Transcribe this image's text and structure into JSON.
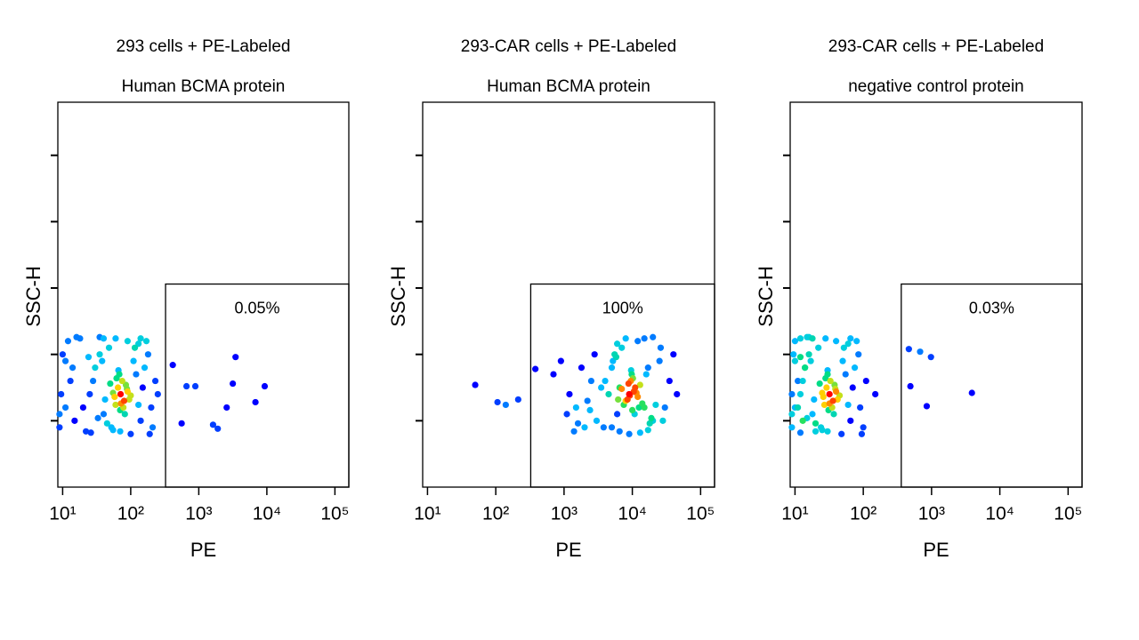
{
  "chart_data": [
    {
      "type": "scatter",
      "title": "293 cells + PE-Labeled",
      "subtitle": "Human BCMA protein",
      "x_label": "PE",
      "y_label": "SSC-H",
      "x_scale": "log",
      "xlim": [
        8.5,
        160000
      ],
      "xticks": [
        {
          "value": 10,
          "label": "10¹"
        },
        {
          "value": 100,
          "label": "10²"
        },
        {
          "value": 1000,
          "label": "10³"
        },
        {
          "value": 10000,
          "label": "10⁴"
        },
        {
          "value": 100000,
          "label": "10⁵"
        }
      ],
      "ylim": [
        0,
        290
      ],
      "yticks": [
        50,
        100,
        150,
        200,
        250
      ],
      "colormap": [
        "#0000ff",
        "#00c8ff",
        "#00e070",
        "#ffe000",
        "#ff0000"
      ],
      "gate": {
        "x": [
          325,
          160000
        ],
        "y": [
          0,
          153
        ],
        "label": "0.05%"
      },
      "x": [
        71,
        65,
        80,
        58,
        90,
        75,
        60,
        85,
        70,
        95,
        55,
        68,
        78,
        88,
        62,
        100,
        72,
        50,
        82,
        66,
        30,
        40,
        120,
        140,
        25,
        35,
        45,
        110,
        150,
        20,
        28,
        38,
        130,
        160,
        48,
        52,
        115,
        42,
        33,
        24,
        9,
        11,
        13,
        10,
        12,
        15,
        18,
        9.5,
        14,
        22,
        200,
        230,
        180,
        210,
        250,
        170,
        190,
        16,
        11,
        9,
        26,
        60,
        90,
        130,
        40,
        70,
        100,
        55,
        140,
        35,
        415,
        660,
        890,
        3470,
        3160,
        9300,
        6800,
        2570,
        1620,
        1900,
        560
      ],
      "values": [
        70,
        75,
        65,
        68,
        72,
        80,
        62,
        77,
        58,
        66,
        71,
        85,
        60,
        74,
        82,
        69,
        63,
        78,
        55,
        88,
        90,
        55,
        85,
        50,
        70,
        100,
        48,
        95,
        75,
        60,
        80,
        95,
        62,
        90,
        105,
        45,
        105,
        66,
        52,
        98,
        45,
        60,
        80,
        100,
        110,
        50,
        112,
        70,
        90,
        42,
        60,
        80,
        100,
        45,
        70,
        110,
        40,
        113,
        95,
        55,
        41,
        112,
        110,
        108,
        112,
        42,
        40,
        43,
        112,
        113,
        92,
        76,
        76,
        98,
        78,
        76,
        64,
        60,
        47,
        44,
        48
      ]
    },
    {
      "type": "scatter",
      "title": "293-CAR cells + PE-Labeled",
      "subtitle": "Human BCMA protein",
      "x_label": "PE",
      "y_label": "SSC-H",
      "x_scale": "log",
      "xlim": [
        8.5,
        160000
      ],
      "xticks": [
        {
          "value": 10,
          "label": "10¹"
        },
        {
          "value": 100,
          "label": "10²"
        },
        {
          "value": 1000,
          "label": "10³"
        },
        {
          "value": 10000,
          "label": "10⁴"
        },
        {
          "value": 100000,
          "label": "10⁵"
        }
      ],
      "ylim": [
        0,
        290
      ],
      "yticks": [
        50,
        100,
        150,
        200,
        250
      ],
      "colormap": [
        "#0000ff",
        "#00c8ff",
        "#00e070",
        "#ffe000",
        "#ff0000"
      ],
      "gate": {
        "x": [
          325,
          160000
        ],
        "y": [
          0,
          153
        ],
        "label": "100%"
      },
      "x": [
        9000,
        11000,
        8000,
        12000,
        10500,
        9500,
        7500,
        13000,
        10000,
        8500,
        11500,
        9800,
        12500,
        7000,
        10200,
        9200,
        14000,
        8800,
        10800,
        9600,
        5000,
        6000,
        16000,
        20000,
        4500,
        5500,
        18000,
        25000,
        6500,
        15000,
        4000,
        5200,
        22000,
        17000,
        7000,
        3800,
        26000,
        6200,
        19000,
        5800,
        1500,
        2000,
        2500,
        1200,
        3000,
        1800,
        900,
        1100,
        1400,
        2200,
        2800,
        3500,
        700,
        1600,
        2400,
        30000,
        35000,
        40000,
        28000,
        45000,
        8000,
        12000,
        15000,
        6000,
        20000,
        9000,
        13000,
        6500,
        17000,
        5000,
        50,
        106,
        140,
        213,
        380
      ],
      "values": [
        70,
        75,
        65,
        68,
        72,
        80,
        62,
        77,
        58,
        66,
        71,
        85,
        60,
        74,
        82,
        69,
        63,
        78,
        55,
        88,
        90,
        55,
        85,
        50,
        70,
        100,
        48,
        95,
        75,
        60,
        80,
        95,
        62,
        90,
        105,
        45,
        105,
        66,
        52,
        98,
        60,
        45,
        80,
        70,
        50,
        90,
        95,
        55,
        42,
        65,
        100,
        75,
        85,
        48,
        58,
        60,
        80,
        100,
        50,
        70,
        112,
        110,
        112,
        108,
        113,
        40,
        41,
        42,
        43,
        45,
        77,
        64,
        62,
        66,
        89
      ]
    },
    {
      "type": "scatter",
      "title": "293-CAR cells + PE-Labeled",
      "subtitle": "negative control protein",
      "x_label": "PE",
      "y_label": "SSC-H",
      "x_scale": "log",
      "xlim": [
        8.5,
        160000
      ],
      "xticks": [
        {
          "value": 10,
          "label": "10¹"
        },
        {
          "value": 100,
          "label": "10²"
        },
        {
          "value": 1000,
          "label": "10³"
        },
        {
          "value": 10000,
          "label": "10⁴"
        },
        {
          "value": 100000,
          "label": "10⁵"
        }
      ],
      "ylim": [
        0,
        290
      ],
      "yticks": [
        50,
        100,
        150,
        200,
        250
      ],
      "colormap": [
        "#0000ff",
        "#00c8ff",
        "#00e070",
        "#ffe000",
        "#ff0000"
      ],
      "gate": {
        "x": [
          360,
          160000
        ],
        "y": [
          0,
          153
        ],
        "label": "0.03%"
      },
      "x": [
        32,
        29,
        36,
        26,
        40,
        33,
        27,
        38,
        31,
        42,
        25,
        30,
        35,
        39,
        28,
        45,
        32,
        23,
        37,
        30,
        14,
        18,
        55,
        65,
        12,
        16,
        20,
        50,
        70,
        11,
        13,
        17,
        60,
        75,
        22,
        24,
        52,
        19,
        15,
        12,
        9,
        10,
        11,
        9.5,
        10,
        13,
        12,
        9,
        14,
        20,
        90,
        110,
        85,
        100,
        150,
        80,
        95,
        15,
        10,
        9,
        12,
        28,
        40,
        60,
        18,
        30,
        48,
        25,
        65,
        16,
        465,
        680,
        980,
        490,
        850,
        3900
      ],
      "values": [
        70,
        75,
        65,
        68,
        72,
        80,
        62,
        77,
        58,
        66,
        71,
        85,
        60,
        74,
        82,
        69,
        63,
        78,
        55,
        88,
        90,
        55,
        85,
        50,
        70,
        100,
        48,
        95,
        75,
        60,
        80,
        95,
        62,
        90,
        105,
        45,
        105,
        66,
        52,
        98,
        45,
        60,
        80,
        100,
        110,
        50,
        112,
        70,
        90,
        42,
        60,
        80,
        100,
        45,
        70,
        110,
        40,
        113,
        95,
        55,
        41,
        112,
        110,
        108,
        112,
        42,
        40,
        43,
        112,
        113,
        104,
        102,
        98,
        76,
        61,
        71
      ]
    }
  ]
}
